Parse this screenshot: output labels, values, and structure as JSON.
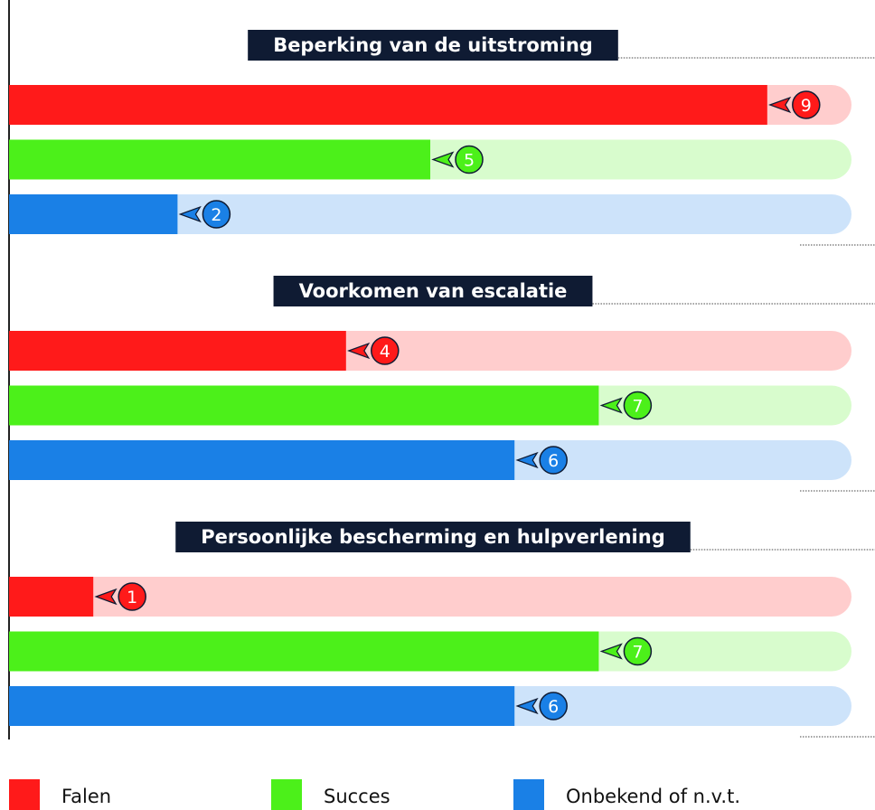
{
  "chart_data": {
    "type": "bar",
    "orientation": "horizontal",
    "categories": [
      "Beperking van de uitstroming",
      "Voorkomen van escalatie",
      "Persoonlijke bescherming en hulpverlening"
    ],
    "series": [
      {
        "name": "Falen",
        "color": "#ff1a1a",
        "values": [
          9,
          4,
          1
        ]
      },
      {
        "name": "Succes",
        "color": "#4cf01a",
        "values": [
          5,
          7,
          7
        ]
      },
      {
        "name": "Onbekend of n.v.t.",
        "color": "#1a80e6",
        "values": [
          2,
          6,
          6
        ]
      }
    ],
    "xlim": [
      0,
      10
    ]
  }
}
